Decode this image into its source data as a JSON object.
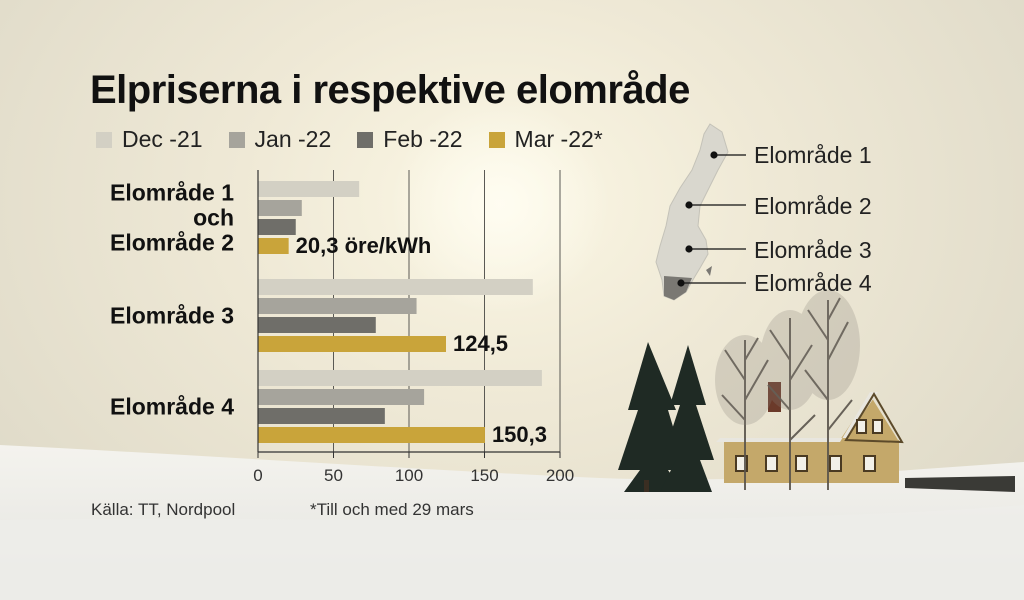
{
  "title": "Elpriserna i respektive elområde",
  "legend": [
    {
      "label": "Dec -21",
      "color": "#d3d0c4"
    },
    {
      "label": "Jan -22",
      "color": "#a6a49c"
    },
    {
      "label": "Feb -22",
      "color": "#6f6e69"
    },
    {
      "label": "Mar -22*",
      "color": "#c9a43a"
    }
  ],
  "chart_data": {
    "type": "bar",
    "orientation": "horizontal",
    "title": "Elpriserna i respektive elområde",
    "unit": "öre/kWh",
    "categories": [
      [
        "Elområde 1",
        "och",
        "Elområde 2"
      ],
      [
        "Elområde 3"
      ],
      [
        "Elområde 4"
      ]
    ],
    "series": [
      {
        "name": "Dec -21",
        "values": [
          67,
          182,
          188
        ]
      },
      {
        "name": "Jan -22",
        "values": [
          29,
          105,
          110
        ]
      },
      {
        "name": "Feb -22",
        "values": [
          25,
          78,
          84
        ]
      },
      {
        "name": "Mar -22*",
        "values": [
          20.3,
          124.5,
          150.3
        ]
      }
    ],
    "data_labels": [
      "20,3 öre/kWh",
      "124,5",
      "150,3"
    ],
    "xticks": [
      "0",
      "50",
      "100",
      "150",
      "200"
    ],
    "xlim": [
      0,
      200
    ],
    "grid": true,
    "legend_position": "top"
  },
  "map": {
    "labels": [
      "Elområde 1",
      "Elområde 2",
      "Elområde 3",
      "Elområde 4"
    ]
  },
  "source": "Källa: TT, Nordpool",
  "footnote": "*Till och med 29 mars"
}
